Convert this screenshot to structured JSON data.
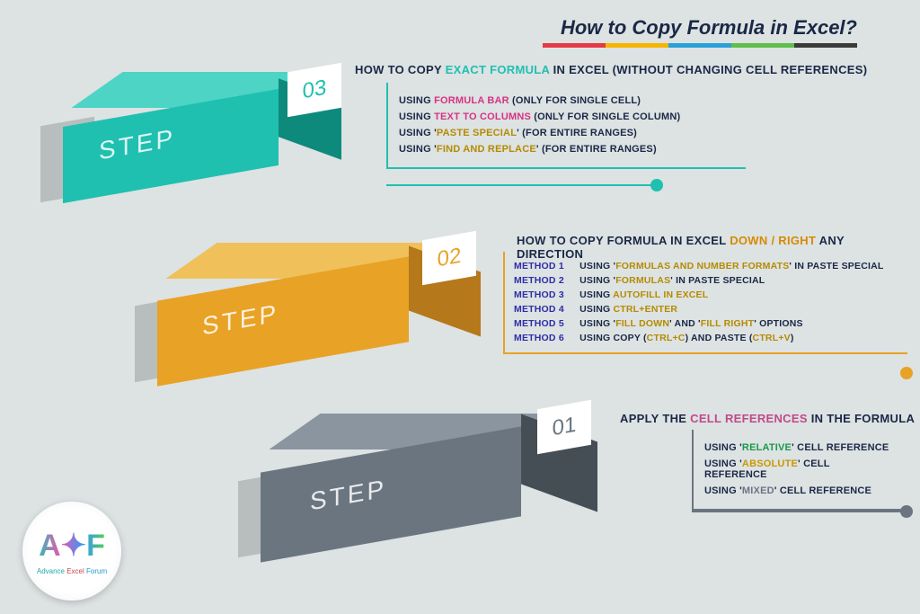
{
  "title": "How to Copy Formula in Excel?",
  "rainbow_colors": [
    "#e53946",
    "#f7b500",
    "#2aa0d8",
    "#5fbf4a",
    "#3a3a3a"
  ],
  "steps": [
    {
      "num": "03",
      "label": "STEP",
      "color_main": "#1fc0b0",
      "color_dark": "#0e8a7c",
      "color_top": "#4dd4c5",
      "badge_text_color": "#1fc0b0",
      "heading_pre": "HOW TO COPY ",
      "heading_hl": "EXACT FORMULA",
      "heading_hl_color": "#1fc0b0",
      "heading_post": " IN EXCEL (WITHOUT CHANGING CELL REFERENCES)",
      "items": [
        {
          "pre": "USING ",
          "hl": "FORMULA BAR",
          "hl_color": "#d63384",
          "post": " (ONLY FOR SINGLE CELL)"
        },
        {
          "pre": "USING ",
          "hl": "TEXT TO COLUMNS",
          "hl_color": "#d63384",
          "post": " (ONLY FOR SINGLE COLUMN)"
        },
        {
          "pre": "USING '",
          "hl": "PASTE SPECIAL",
          "hl_color": "#b58b00",
          "post": "' (FOR ENTIRE RANGES)"
        },
        {
          "pre": "USING '",
          "hl": "FIND AND REPLACE",
          "hl_color": "#b58b00",
          "post": "' (FOR ENTIRE RANGES)"
        }
      ]
    },
    {
      "num": "02",
      "label": "STEP",
      "color_main": "#e8a225",
      "color_dark": "#b5781a",
      "color_top": "#f0c15a",
      "badge_text_color": "#e8a225",
      "heading_pre": "HOW TO COPY FORMULA IN EXCEL ",
      "heading_hl": "DOWN / RIGHT",
      "heading_hl_color": "#d68a00",
      "heading_post": " ANY DIRECTION",
      "methods": [
        {
          "label": "METHOD 1",
          "pre": "USING '",
          "hl": "FORMULAS AND NUMBER FORMATS",
          "hl_color": "#b58b00",
          "post": "' IN PASTE SPECIAL"
        },
        {
          "label": "METHOD 2",
          "pre": "USING '",
          "hl": "FORMULAS",
          "hl_color": "#b58b00",
          "post": "' IN PASTE SPECIAL"
        },
        {
          "label": "METHOD 3",
          "pre": "USING ",
          "hl": "AUTOFILL IN EXCEL",
          "hl_color": "#b58b00",
          "post": ""
        },
        {
          "label": "METHOD 4",
          "pre": "USING ",
          "hl": "CTRL+ENTER",
          "hl_color": "#b58b00",
          "post": ""
        },
        {
          "label": "METHOD 5",
          "pre": "USING '",
          "hl": "FILL DOWN",
          "hl_color": "#b58b00",
          "post": "' AND '",
          "hl2": "FILL RIGHT",
          "hl2_color": "#b58b00",
          "post2": "' OPTIONS"
        },
        {
          "label": "METHOD 6",
          "pre": "USING COPY (",
          "hl": "CTRL+C",
          "hl_color": "#b58b00",
          "post": ") AND PASTE (",
          "hl2": "CTRL+V",
          "hl2_color": "#b58b00",
          "post2": ")"
        }
      ]
    },
    {
      "num": "01",
      "label": "STEP",
      "color_main": "#6a7580",
      "color_dark": "#454d55",
      "color_top": "#8a95a0",
      "badge_text_color": "#6a7580",
      "heading_pre": "APPLY THE ",
      "heading_hl": "CELL REFERENCES",
      "heading_hl_color": "#c04a8a",
      "heading_post": " IN THE FORMULA",
      "items": [
        {
          "pre": "USING '",
          "hl": "RELATIVE",
          "hl_color": "#1a9a4a",
          "post": "' CELL REFERENCE"
        },
        {
          "pre": "USING '",
          "hl": "ABSOLUTE",
          "hl_color": "#c69a00",
          "post": "' CELL REFERENCE"
        },
        {
          "pre": "USING '",
          "hl": "MIXED",
          "hl_color": "#6a7580",
          "post": "' CELL REFERENCE"
        }
      ]
    }
  ],
  "logo": {
    "text_a": "Advance ",
    "text_b": "Excel ",
    "text_c": "Forum",
    "glyph": "A✦F"
  }
}
